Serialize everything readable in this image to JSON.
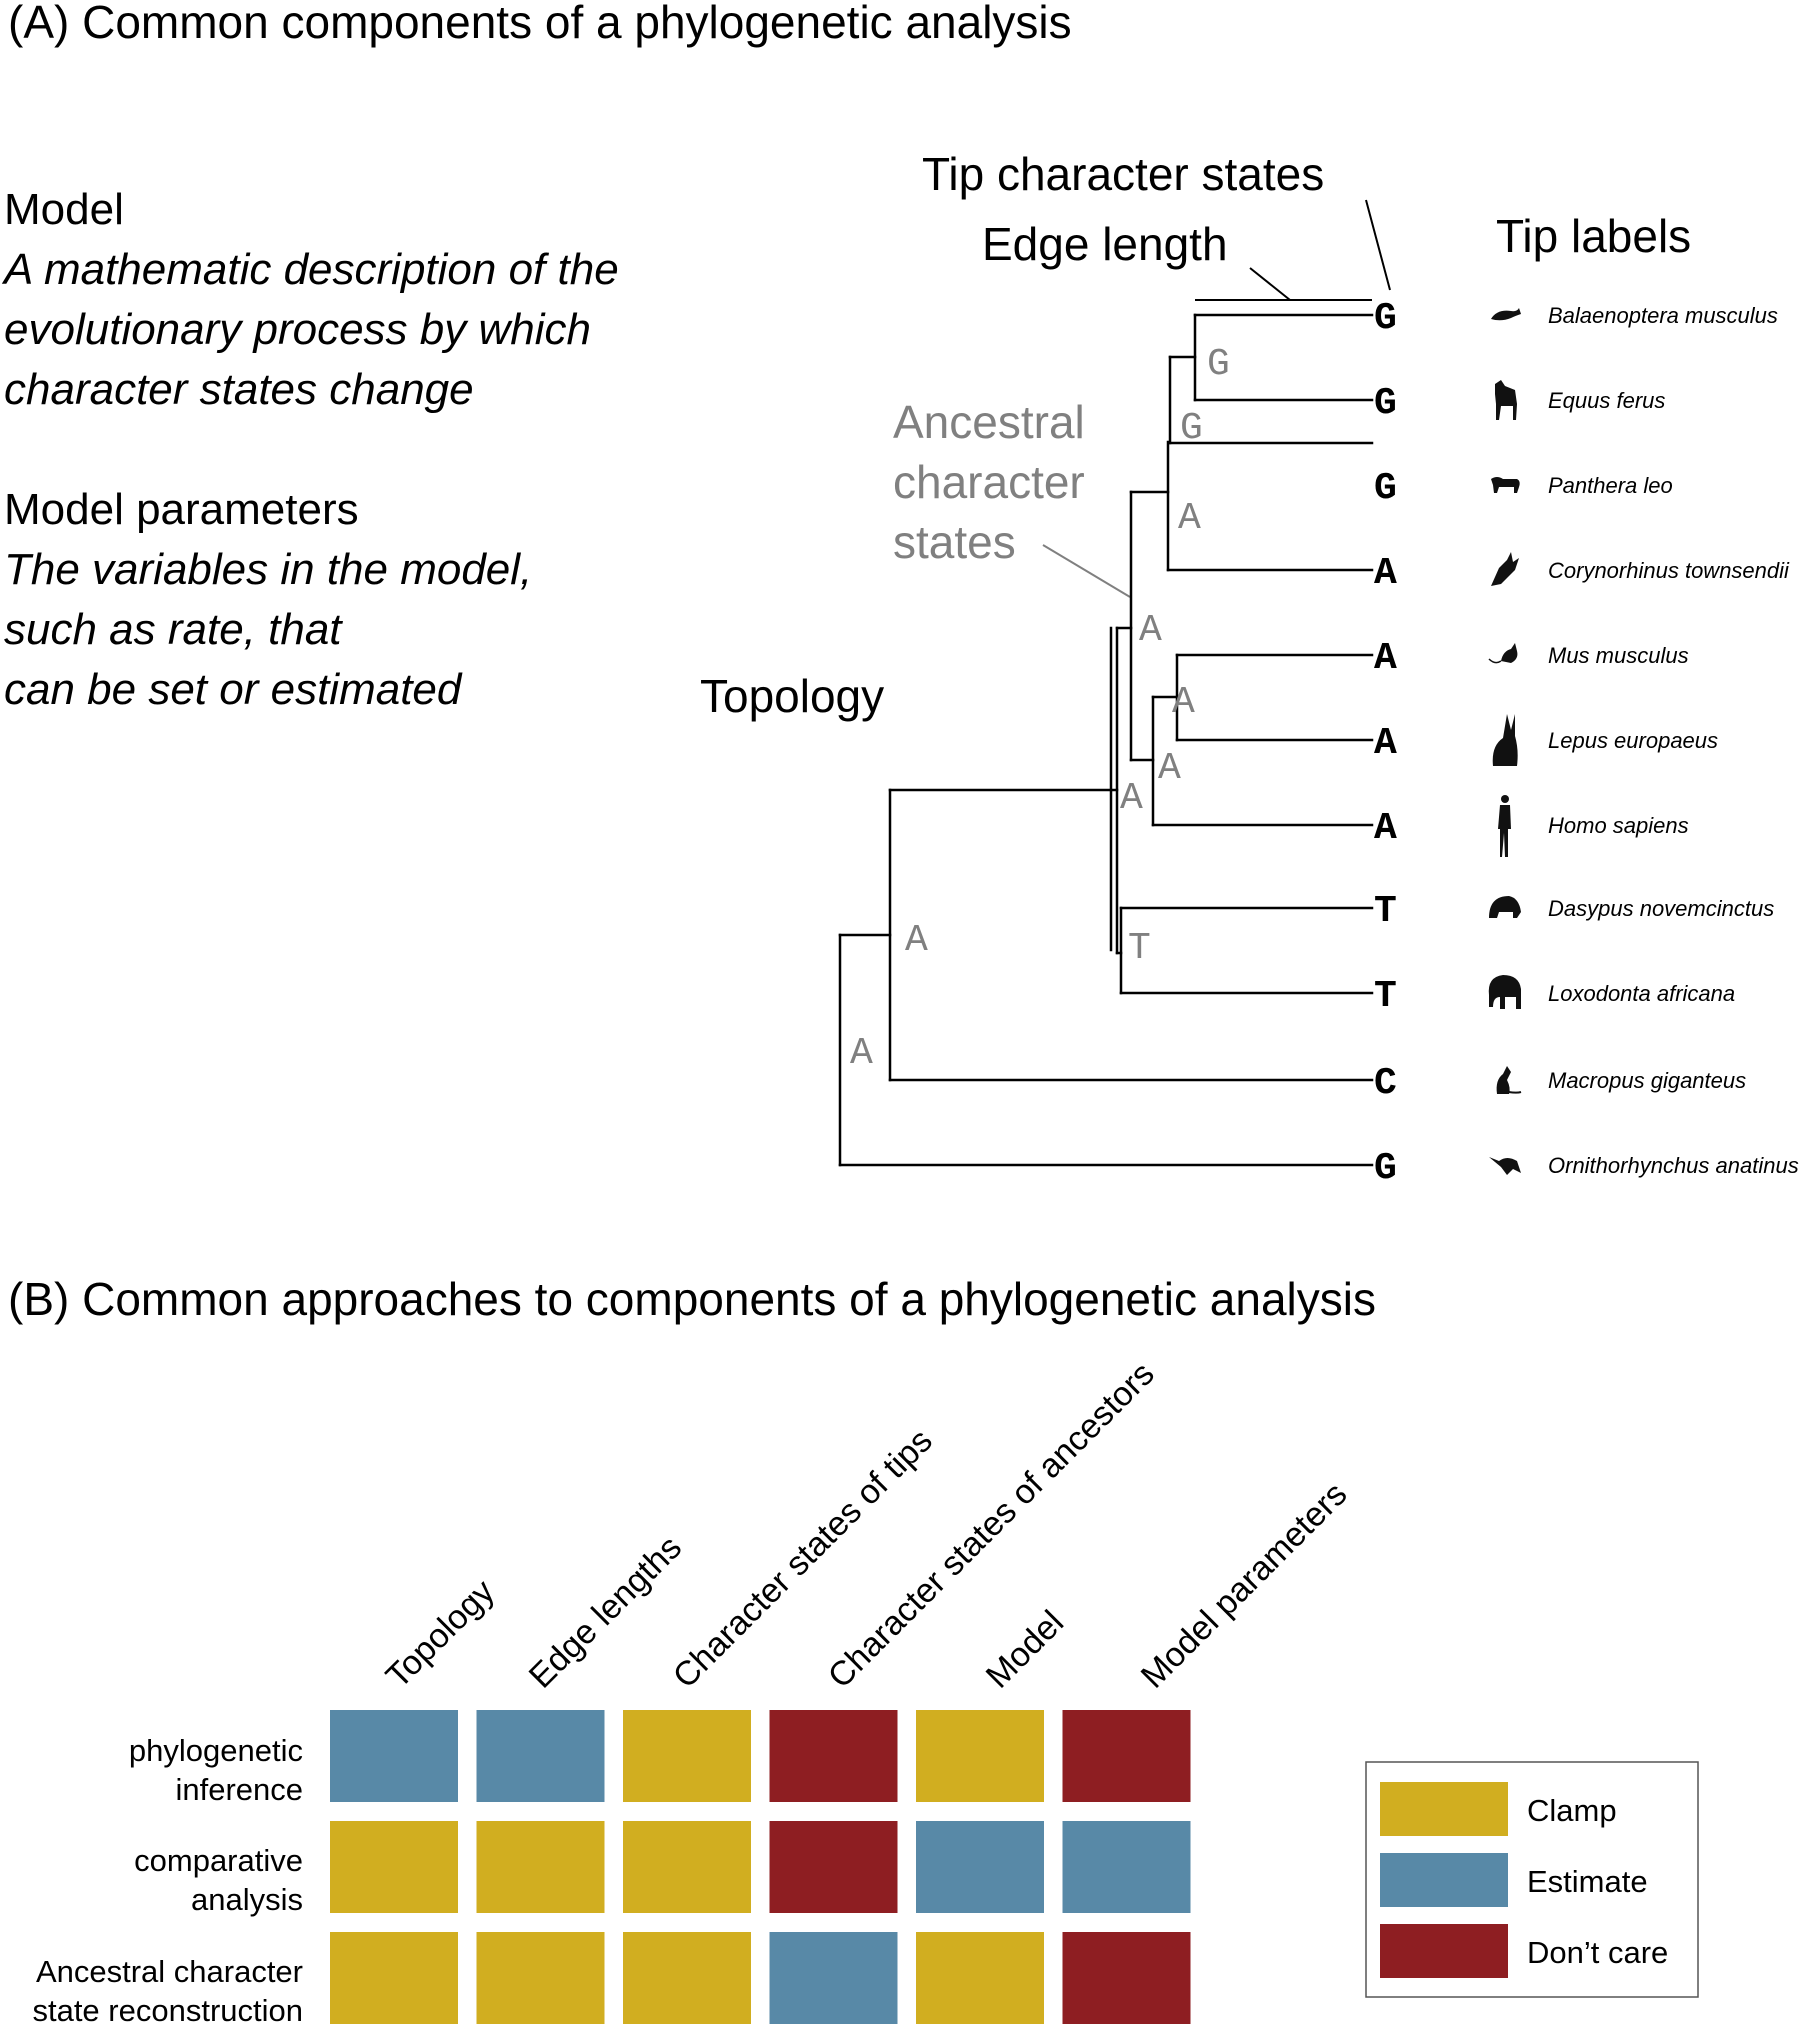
{
  "panel_a": {
    "title": "(A) Common components of a phylogenetic analysis",
    "model": {
      "heading": "Model",
      "description_lines": [
        "A mathematic description of the",
        "evolutionary process by which",
        "character states change"
      ]
    },
    "model_parameters": {
      "heading": "Model parameters",
      "description_lines": [
        "The variables in the model,",
        "such as rate, that",
        "can be set or estimated"
      ]
    },
    "labels": {
      "topology": "Topology",
      "tip_character_states": "Tip character states",
      "edge_length": "Edge length",
      "tip_labels": "Tip labels",
      "ancestral_lines": [
        "Ancestral",
        "character",
        "states"
      ]
    },
    "tips": [
      {
        "state": "G",
        "species": "Balaenoptera musculus",
        "icon": "whale-icon"
      },
      {
        "state": "G",
        "species": "Equus ferus",
        "icon": "horse-icon"
      },
      {
        "state": "G",
        "species": "Panthera leo",
        "icon": "lion-icon"
      },
      {
        "state": "A",
        "species": "Corynorhinus townsendii",
        "icon": "bat-icon"
      },
      {
        "state": "A",
        "species": "Mus musculus",
        "icon": "mouse-icon"
      },
      {
        "state": "A",
        "species": "Lepus europaeus",
        "icon": "hare-icon"
      },
      {
        "state": "A",
        "species": "Homo sapiens",
        "icon": "human-icon"
      },
      {
        "state": "T",
        "species": "Dasypus novemcinctus",
        "icon": "armadillo-icon"
      },
      {
        "state": "T",
        "species": "Loxodonta africana",
        "icon": "elephant-icon"
      },
      {
        "state": "C",
        "species": "Macropus giganteus",
        "icon": "kangaroo-icon"
      },
      {
        "state": "G",
        "species": "Ornithorhynchus anatinus",
        "icon": "platypus-icon"
      }
    ],
    "ancestral_states": [
      "G",
      "G",
      "A",
      "A",
      "A",
      "A",
      "A",
      "T",
      "A",
      "A"
    ]
  },
  "panel_b": {
    "title": "(B) Common approaches to components of a phylogenetic analysis",
    "columns": [
      "Topology",
      "Edge lengths",
      "Character states of tips",
      "Character states of ancestors",
      "Model",
      "Model parameters"
    ],
    "rows": [
      {
        "label_lines": [
          "phylogenetic",
          "inference"
        ],
        "cells": [
          "Estimate",
          "Estimate",
          "Clamp",
          "Don’t care",
          "Clamp",
          "Don’t care"
        ]
      },
      {
        "label_lines": [
          "comparative",
          "analysis"
        ],
        "cells": [
          "Clamp",
          "Clamp",
          "Clamp",
          "Don’t care",
          "Estimate",
          "Estimate"
        ]
      },
      {
        "label_lines": [
          "Ancestral character",
          "state reconstruction"
        ],
        "cells": [
          "Clamp",
          "Clamp",
          "Clamp",
          "Estimate",
          "Clamp",
          "Don’t care"
        ]
      }
    ],
    "legend": [
      {
        "label": "Clamp",
        "color": "#D1AE20"
      },
      {
        "label": "Estimate",
        "color": "#5889A7"
      },
      {
        "label": "Don’t care",
        "color": "#8E1E22"
      }
    ]
  },
  "colors": {
    "ancestral_text": "#808080",
    "legend_border": "#555555"
  }
}
